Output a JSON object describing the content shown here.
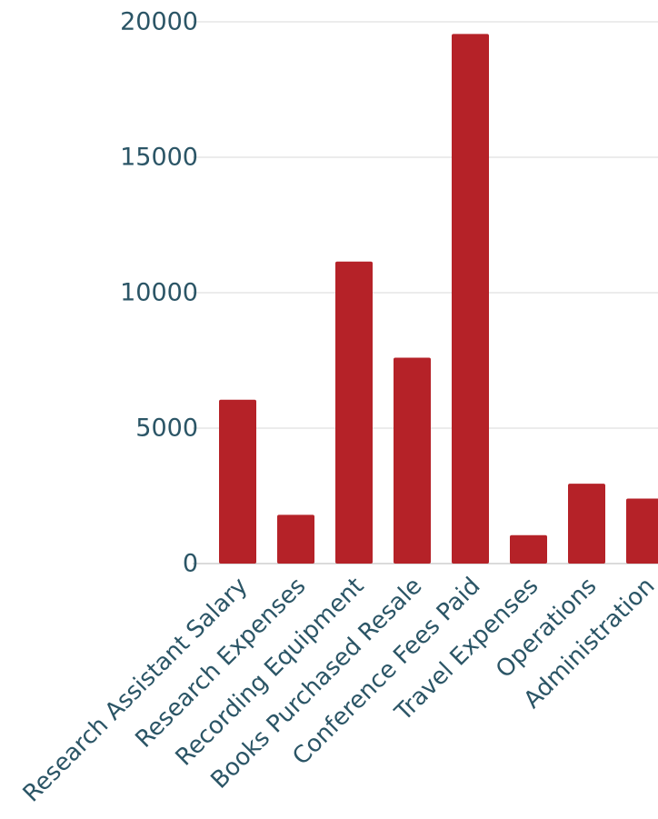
{
  "chart_data": {
    "type": "bar",
    "categories": [
      "Research Assistant Salary",
      "Research Expenses",
      "Recording Equipment",
      "Books Purchased Resale",
      "Conference Fees Paid",
      "Travel Expenses",
      "Operations",
      "Administration"
    ],
    "values": [
      6050,
      1800,
      11150,
      7600,
      19550,
      1050,
      2950,
      2400
    ],
    "title": "",
    "xlabel": "",
    "ylabel": "",
    "ylim": [
      0,
      20000
    ],
    "yticks": [
      "0",
      "5000",
      "10000",
      "15000",
      "20000"
    ],
    "grid": true,
    "legend": "none",
    "colors": {
      "bar": "#b52228",
      "text": "#2b5566",
      "grid": "#d9d9d9"
    }
  }
}
